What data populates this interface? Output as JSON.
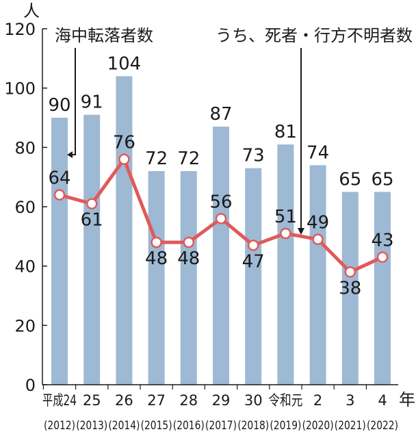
{
  "chart_data": {
    "type": "bar",
    "title": "",
    "y_unit": "人",
    "x_unit": "年",
    "ylim": [
      0,
      120
    ],
    "yticks": [
      0,
      20,
      40,
      60,
      80,
      100,
      120
    ],
    "categories": [
      "平成24",
      "25",
      "26",
      "27",
      "28",
      "29",
      "30",
      "令和元",
      "2",
      "3",
      "4"
    ],
    "category_years": [
      "(2012)",
      "(2013)",
      "(2014)",
      "(2015)",
      "(2016)",
      "(2017)",
      "(2018)",
      "(2019)",
      "(2020)",
      "(2021)",
      "(2022)"
    ],
    "series": [
      {
        "name": "海中転落者数",
        "type": "bar",
        "color": "#9db9d3",
        "values": [
          90,
          91,
          104,
          72,
          72,
          87,
          73,
          81,
          74,
          65,
          65
        ]
      },
      {
        "name": "うち、死者・行方不明者数",
        "type": "line",
        "color": "#e05a5a",
        "values": [
          64,
          61,
          76,
          48,
          48,
          56,
          47,
          51,
          49,
          38,
          43
        ]
      }
    ]
  }
}
